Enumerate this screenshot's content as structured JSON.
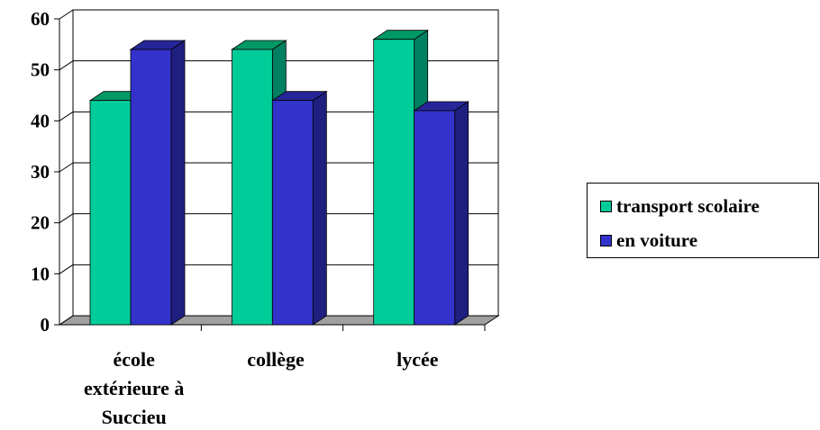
{
  "chart_data": {
    "type": "bar",
    "categories": [
      [
        "école",
        "extérieure à",
        "Succieu"
      ],
      [
        "collège"
      ],
      [
        "lycée"
      ]
    ],
    "series": [
      {
        "name": "transport scolaire",
        "values": [
          44,
          54,
          56
        ],
        "color": "#00cc99",
        "top_color": "#009966",
        "side_color": "#008060"
      },
      {
        "name": "en voiture",
        "values": [
          54,
          44,
          42
        ],
        "color": "#3333cc",
        "top_color": "#262699",
        "side_color": "#1f1f80"
      }
    ],
    "ylim": [
      0,
      60
    ],
    "yticks": [
      "0",
      "10",
      "20",
      "30",
      "40",
      "50",
      "60"
    ],
    "grid": true,
    "legend_position": "right"
  }
}
